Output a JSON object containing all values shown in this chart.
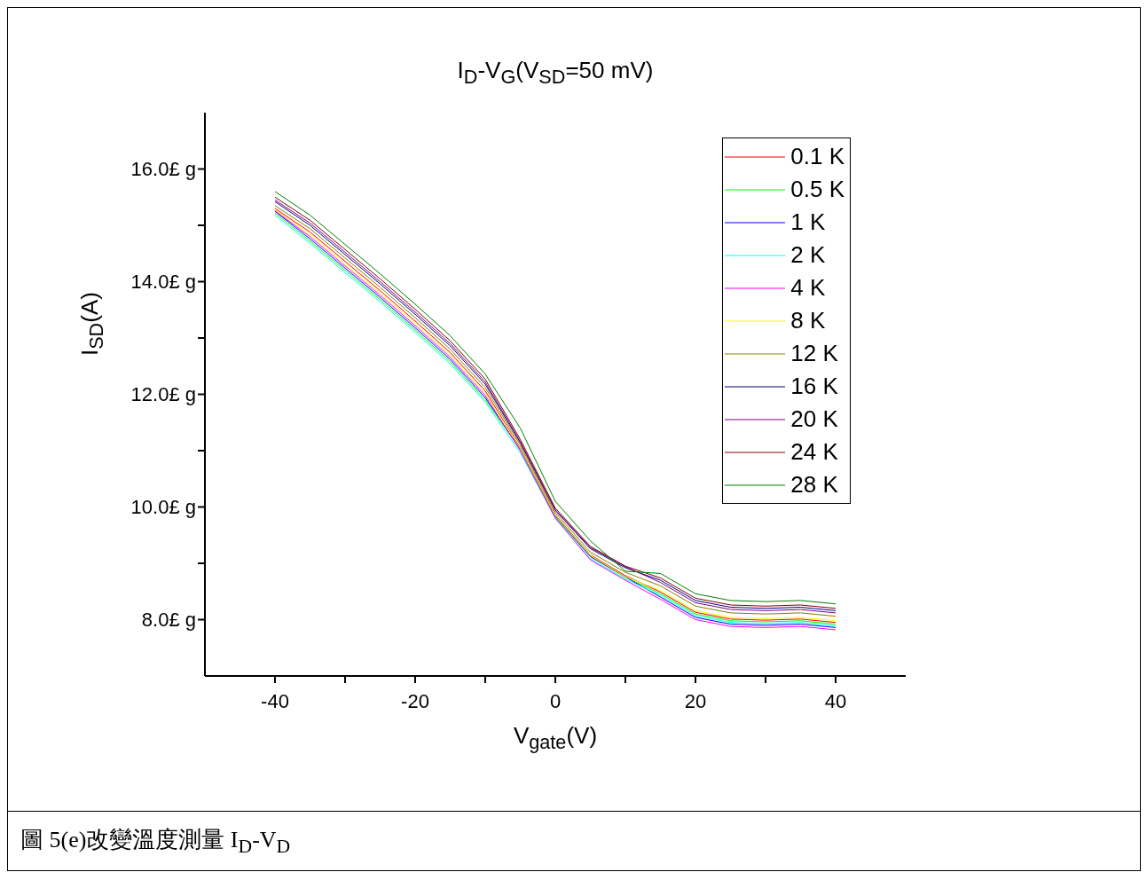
{
  "chart_data": {
    "type": "line",
    "title": "I$_{D}$-V$_{G}$(V$_{SD}$=50 mV)",
    "xlabel": "V$_{gate}$(V)",
    "ylabel": "I$_{SD}$(A)",
    "annotations": [
      "圖 5(e)改變溫度測量 I$_{D}$-V$_{D}$"
    ],
    "x": [
      -40,
      -35,
      -30,
      -25,
      -20,
      -15,
      -10,
      -5,
      0,
      5,
      10,
      15,
      20,
      25,
      30,
      35,
      40
    ],
    "series": [
      {
        "name": "0.1 K",
        "color": "#ff0000",
        "values": [
          15.3,
          14.88,
          14.36,
          13.84,
          13.3,
          12.74,
          12.06,
          11.05,
          9.86,
          9.15,
          8.78,
          8.49,
          8.13,
          8.01,
          7.99,
          8.01,
          7.95
        ]
      },
      {
        "name": "0.5 K",
        "color": "#00ff00",
        "values": [
          15.22,
          14.72,
          14.2,
          13.68,
          13.14,
          12.58,
          11.9,
          11.02,
          9.82,
          9.12,
          8.75,
          8.46,
          8.1,
          7.98,
          7.96,
          7.98,
          7.92
        ]
      },
      {
        "name": "1 K",
        "color": "#0000ff",
        "values": [
          15.25,
          14.76,
          14.24,
          13.72,
          13.18,
          12.62,
          11.94,
          11.03,
          9.84,
          9.12,
          8.76,
          8.4,
          8.04,
          7.92,
          7.9,
          7.92,
          7.86
        ]
      },
      {
        "name": "2 K",
        "color": "#00ffff",
        "values": [
          15.18,
          14.68,
          14.16,
          13.64,
          13.1,
          12.54,
          11.86,
          10.96,
          9.8,
          9.08,
          8.72,
          8.43,
          8.07,
          7.95,
          7.93,
          7.95,
          7.89
        ]
      },
      {
        "name": "4 K",
        "color": "#ff00ff",
        "values": [
          15.26,
          14.8,
          14.28,
          13.76,
          13.22,
          12.66,
          11.98,
          11.0,
          9.8,
          9.06,
          8.7,
          8.36,
          8.0,
          7.88,
          7.86,
          7.88,
          7.82
        ]
      },
      {
        "name": "8 K",
        "color": "#ffff00",
        "values": [
          15.28,
          14.84,
          14.32,
          13.8,
          13.26,
          12.7,
          12.02,
          11.04,
          9.85,
          9.14,
          8.76,
          8.52,
          8.16,
          8.04,
          8.02,
          8.04,
          7.98
        ]
      },
      {
        "name": "12 K",
        "color": "#808000",
        "values": [
          15.35,
          14.94,
          14.42,
          13.9,
          13.36,
          12.8,
          12.12,
          11.1,
          9.9,
          9.2,
          8.84,
          8.6,
          8.24,
          8.12,
          8.1,
          8.12,
          8.06
        ]
      },
      {
        "name": "16 K",
        "color": "#000080",
        "values": [
          15.42,
          15.0,
          14.48,
          13.96,
          13.42,
          12.86,
          12.18,
          11.14,
          9.94,
          9.26,
          8.92,
          8.7,
          8.34,
          8.22,
          8.2,
          8.22,
          8.16
        ]
      },
      {
        "name": "20 K",
        "color": "#800080",
        "values": [
          15.45,
          15.04,
          14.52,
          14.0,
          13.46,
          12.9,
          12.22,
          11.16,
          9.95,
          9.28,
          8.94,
          8.66,
          8.3,
          8.18,
          8.16,
          8.18,
          8.12
        ]
      },
      {
        "name": "24 K",
        "color": "#800000",
        "values": [
          15.5,
          15.09,
          14.57,
          14.05,
          13.51,
          12.95,
          12.27,
          11.2,
          9.98,
          9.3,
          8.95,
          8.74,
          8.38,
          8.26,
          8.24,
          8.26,
          8.2
        ]
      },
      {
        "name": "28 K",
        "color": "#008000",
        "values": [
          15.6,
          15.18,
          14.66,
          14.14,
          13.6,
          13.04,
          12.36,
          11.4,
          10.1,
          9.4,
          8.86,
          8.82,
          8.46,
          8.34,
          8.32,
          8.34,
          8.28
        ]
      }
    ],
    "xlim": [
      -50,
      50
    ],
    "xticks": [
      -40,
      {
        "value": -30,
        "label": null
      },
      -20,
      {
        "value": -10,
        "label": null
      },
      0,
      {
        "value": 10,
        "label": null
      },
      20,
      {
        "value": 30,
        "label": null
      },
      40
    ],
    "ylim": [
      7,
      17
    ],
    "yticks": [
      {
        "value": 8,
        "label": "8.0£ g"
      },
      {
        "value": 9,
        "label": null
      },
      {
        "value": 10,
        "label": "10.0£ g"
      },
      {
        "value": 11,
        "label": null
      },
      {
        "value": 12,
        "label": "12.0£ g"
      },
      {
        "value": 13,
        "label": null
      },
      {
        "value": 14,
        "label": "14.0£ g"
      },
      {
        "value": 15,
        "label": null
      },
      {
        "value": 16,
        "label": "16.0£ g"
      }
    ],
    "grid": false,
    "legend": "top right",
    "marker": "none",
    "line_style": "solid"
  }
}
